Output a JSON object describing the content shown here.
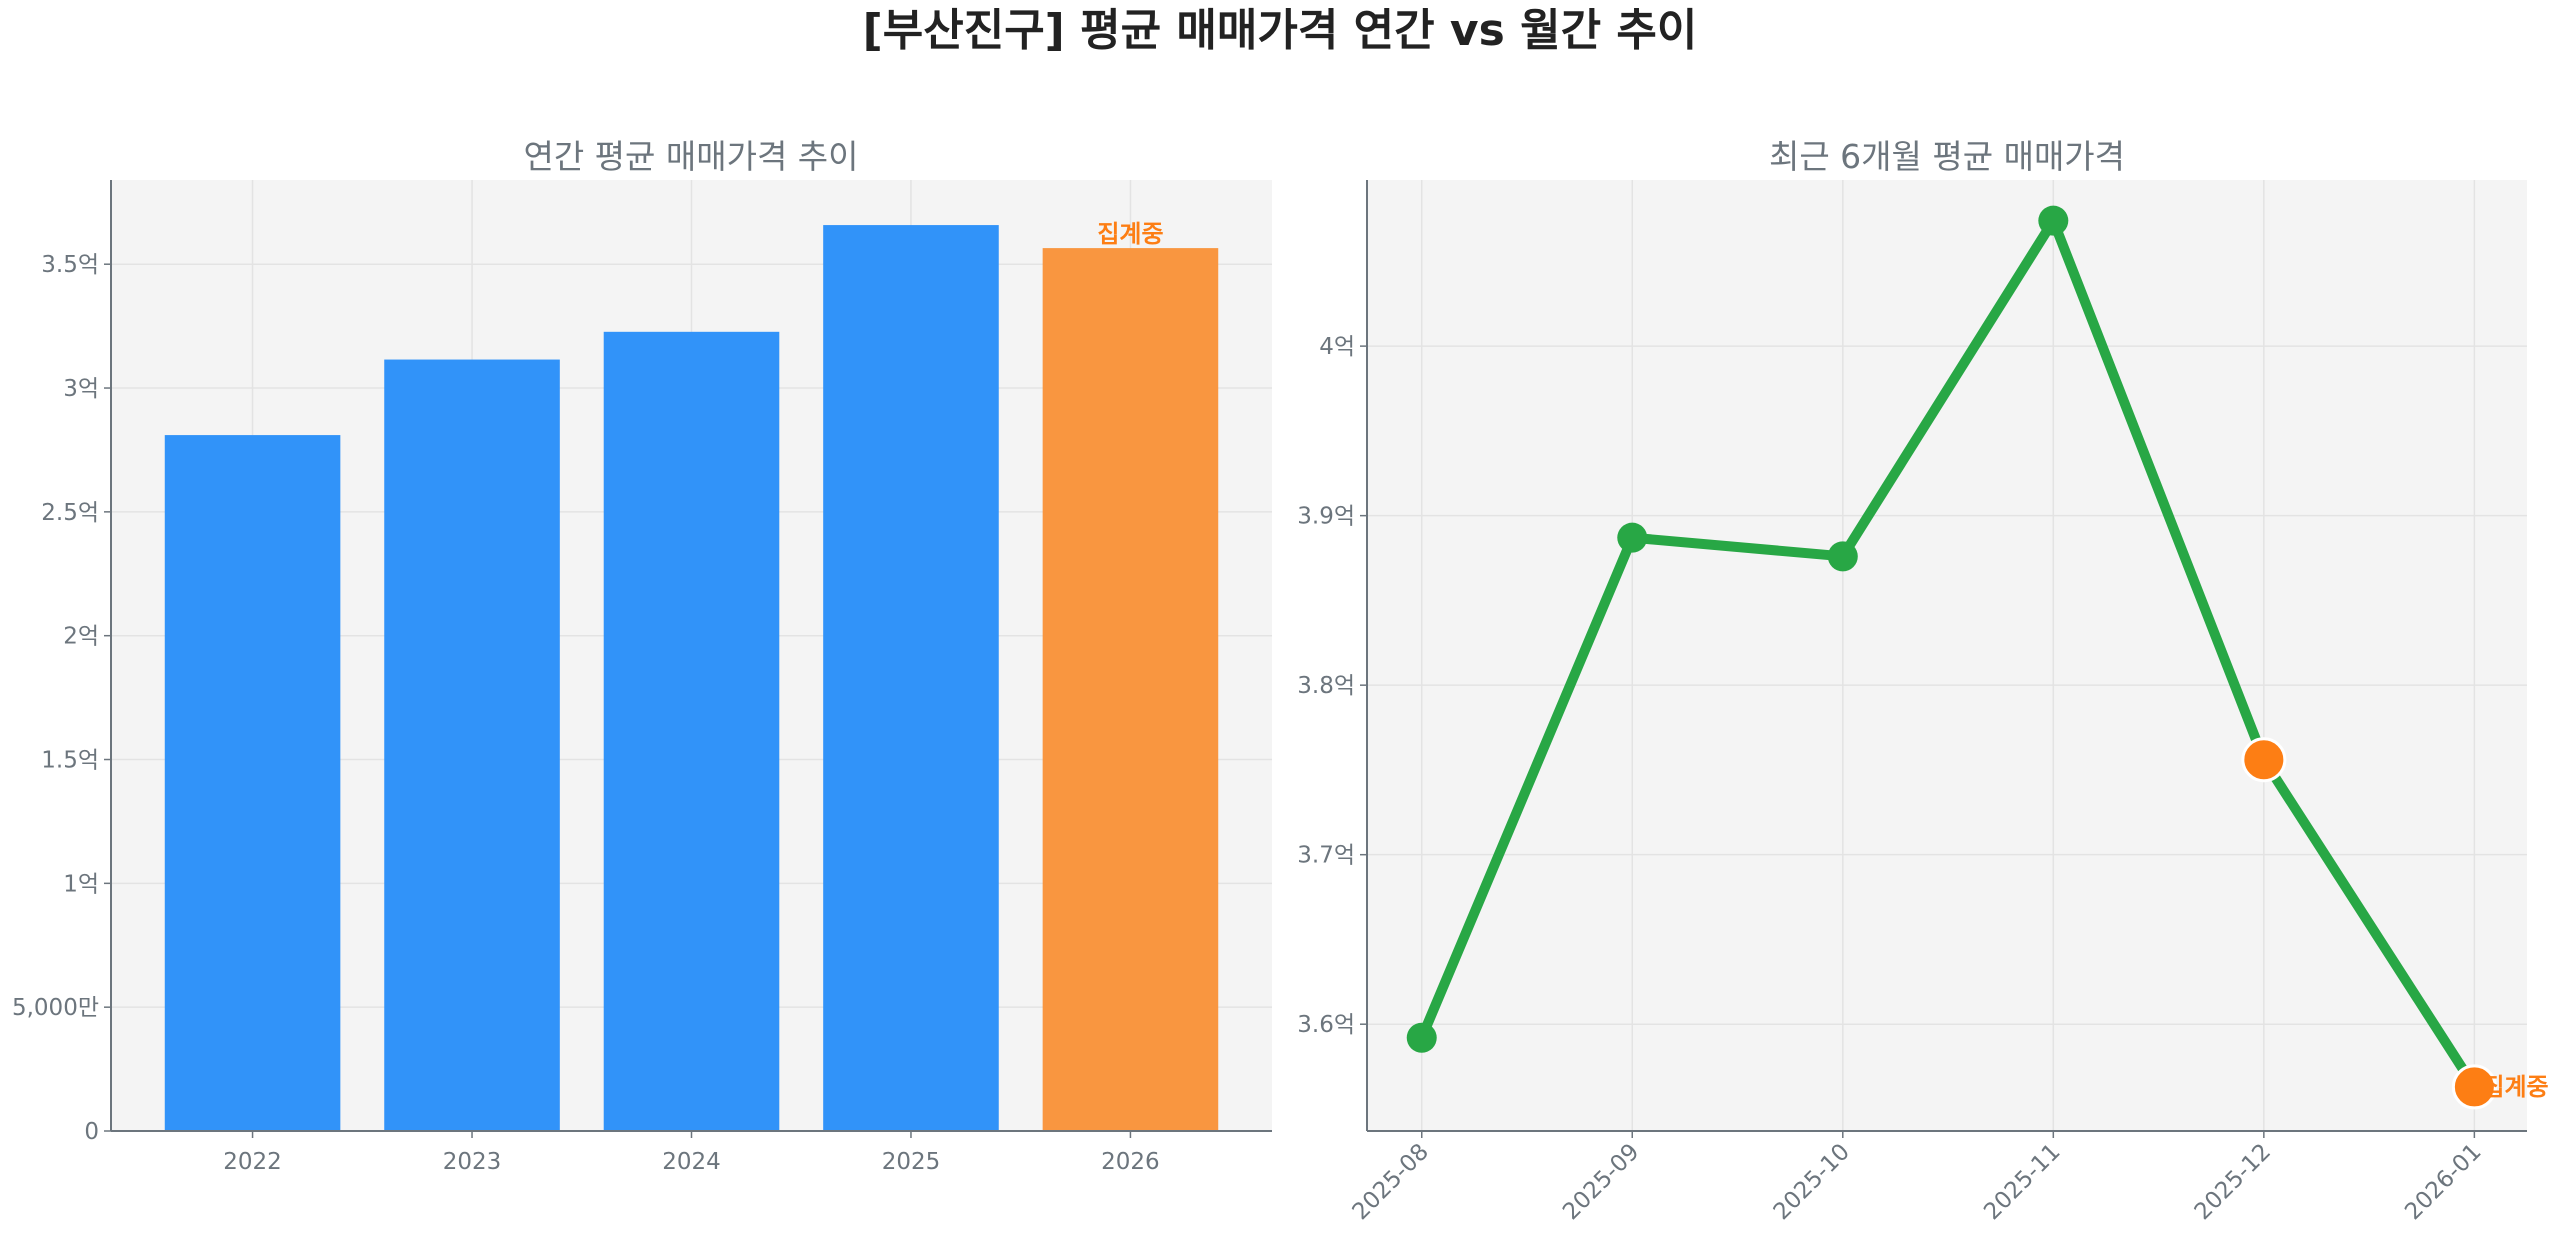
{
  "title": "[부산진구] 평균 매매가격 연간 vs 월간 추이",
  "colors": {
    "bar": "#3193F9",
    "bar_partial": "#F99640",
    "line": "#28A745",
    "marker_partial": "#FD7E14",
    "text": "#6c757d",
    "axes_bg": "#F4F4F4"
  },
  "chart_data": [
    {
      "type": "bar",
      "title": "연간 평균 매매가격 추이",
      "categories": [
        "2022",
        "2023",
        "2024",
        "2025",
        "2026"
      ],
      "values": [
        281000000,
        311500000,
        322700000,
        365800000,
        356500000
      ],
      "partial": [
        false,
        false,
        false,
        false,
        true
      ],
      "annotation": "집계중",
      "ylim": [
        0,
        384000000
      ],
      "yticks": [
        0,
        50000000,
        100000000,
        150000000,
        200000000,
        250000000,
        300000000,
        350000000
      ],
      "ytick_labels": [
        "0",
        "5,000만",
        "1억",
        "1.5억",
        "2억",
        "2.5억",
        "3억",
        "3.5억"
      ],
      "grid": true
    },
    {
      "type": "line",
      "title": "최근 6개월 평균 매매가격",
      "categories": [
        "2025-08",
        "2025-09",
        "2025-10",
        "2025-11",
        "2025-12",
        "2026-01"
      ],
      "values": [
        359200000,
        388700000,
        387600000,
        407400000,
        375600000,
        356300000
      ],
      "partial": [
        false,
        false,
        false,
        false,
        true,
        true
      ],
      "annotation": "집계중",
      "ylim": [
        353700000,
        409800000
      ],
      "yticks": [
        360000000,
        370000000,
        380000000,
        390000000,
        400000000
      ],
      "ytick_labels": [
        "3.6억",
        "3.7억",
        "3.8억",
        "3.9억",
        "4억"
      ],
      "grid": true
    }
  ]
}
